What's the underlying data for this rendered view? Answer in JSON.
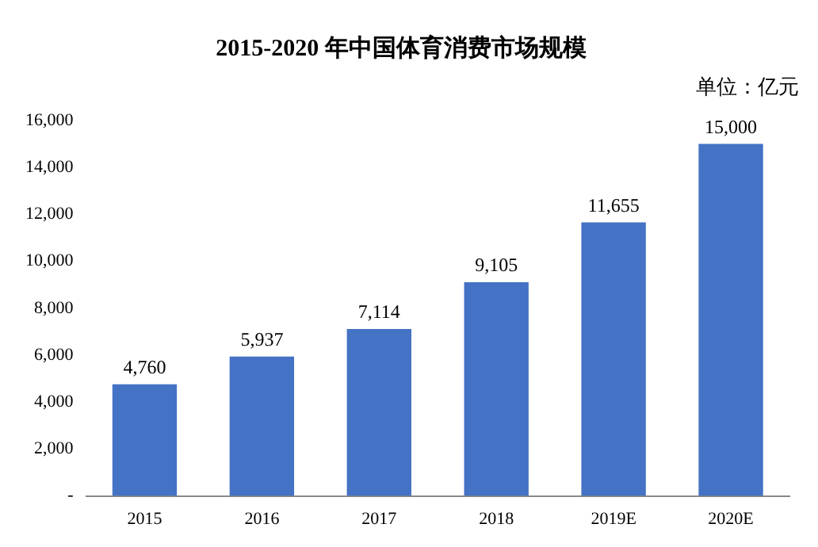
{
  "chart_data": {
    "type": "bar",
    "title": "2015-2020 年中国体育消费市场规模",
    "annotations": [
      "单位：亿元"
    ],
    "categories": [
      "2015",
      "2016",
      "2017",
      "2018",
      "2019E",
      "2020E"
    ],
    "values": [
      4760,
      5937,
      7114,
      9105,
      11655,
      15000
    ],
    "color": "#4472c4",
    "value_labels": [
      "4,760",
      "5,937",
      "7,114",
      "9,105",
      "11,655",
      "15,000"
    ],
    "ylim": [
      0,
      16000
    ],
    "yticks": [
      {
        "value": 0,
        "label": "-"
      },
      {
        "value": 2000,
        "label": "2,000"
      },
      {
        "value": 4000,
        "label": "4,000"
      },
      {
        "value": 6000,
        "label": "6,000"
      },
      {
        "value": 8000,
        "label": "8,000"
      },
      {
        "value": 10000,
        "label": "10,000"
      },
      {
        "value": 12000,
        "label": "12,000"
      },
      {
        "value": 14000,
        "label": "14,000"
      },
      {
        "value": 16000,
        "label": "16,000"
      }
    ],
    "grid": false,
    "legend": false
  }
}
